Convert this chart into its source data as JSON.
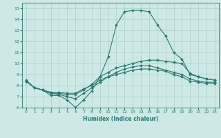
{
  "title": "",
  "xlabel": "Humidex (Indice chaleur)",
  "ylabel": "",
  "xlim": [
    -0.5,
    23.5
  ],
  "ylim": [
    6,
    15.5
  ],
  "xticks": [
    0,
    1,
    2,
    3,
    4,
    5,
    6,
    7,
    8,
    9,
    10,
    11,
    12,
    13,
    14,
    15,
    16,
    17,
    18,
    19,
    20,
    21,
    22,
    23
  ],
  "yticks": [
    6,
    7,
    8,
    9,
    10,
    11,
    12,
    13,
    14,
    15
  ],
  "background_color": "#cde8e5",
  "grid_color": "#aecfcc",
  "line_color": "#2a7a72",
  "line1_x": [
    0,
    1,
    2,
    3,
    4,
    5,
    6,
    7,
    8,
    9,
    10,
    11,
    12,
    13,
    14,
    15,
    16,
    17,
    18,
    19,
    20,
    21,
    22,
    23
  ],
  "line1_y": [
    8.5,
    7.8,
    7.6,
    7.1,
    7.1,
    6.7,
    6.0,
    6.7,
    7.5,
    8.8,
    10.6,
    13.5,
    14.7,
    14.8,
    14.8,
    14.7,
    13.5,
    12.5,
    11.0,
    10.4,
    9.0,
    8.8,
    8.6,
    8.5
  ],
  "line2_x": [
    0,
    1,
    2,
    3,
    4,
    5,
    6,
    7,
    8,
    9,
    10,
    11,
    12,
    13,
    14,
    15,
    16,
    17,
    18,
    19,
    20,
    21,
    22,
    23
  ],
  "line2_y": [
    8.4,
    7.8,
    7.6,
    7.3,
    7.3,
    7.2,
    7.2,
    7.6,
    8.1,
    8.8,
    9.2,
    9.6,
    9.8,
    10.0,
    10.2,
    10.3,
    10.3,
    10.2,
    10.1,
    10.0,
    9.1,
    8.8,
    8.6,
    8.5
  ],
  "line3_x": [
    0,
    1,
    2,
    3,
    4,
    5,
    6,
    7,
    8,
    9,
    10,
    11,
    12,
    13,
    14,
    15,
    16,
    17,
    18,
    19,
    20,
    21,
    22,
    23
  ],
  "line3_y": [
    8.4,
    7.8,
    7.6,
    7.4,
    7.4,
    7.3,
    7.3,
    7.7,
    8.0,
    8.5,
    8.8,
    9.0,
    9.2,
    9.4,
    9.5,
    9.5,
    9.4,
    9.3,
    9.0,
    8.8,
    8.4,
    8.3,
    8.2,
    8.2
  ],
  "line4_x": [
    0,
    1,
    2,
    3,
    4,
    5,
    6,
    7,
    8,
    9,
    10,
    11,
    12,
    13,
    14,
    15,
    16,
    17,
    18,
    19,
    20,
    21,
    22,
    23
  ],
  "line4_y": [
    8.4,
    7.8,
    7.6,
    7.3,
    7.2,
    7.0,
    6.8,
    7.3,
    7.8,
    8.3,
    8.8,
    9.2,
    9.5,
    9.7,
    9.8,
    9.8,
    9.6,
    9.4,
    9.2,
    9.0,
    8.6,
    8.4,
    8.3,
    8.3
  ],
  "marker_size": 2.0,
  "linewidth": 0.8
}
